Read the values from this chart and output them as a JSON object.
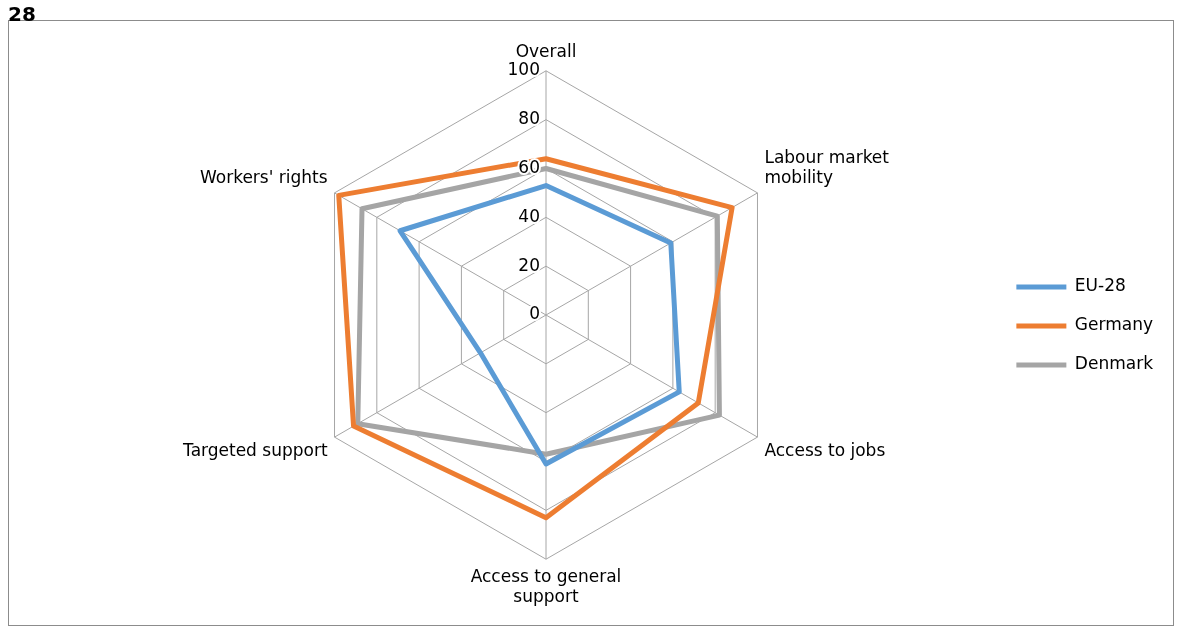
{
  "chart_data": {
    "type": "radar",
    "title": "28",
    "categories": [
      "Overall",
      "Labour market mobility",
      "Access to jobs",
      "Access to general support",
      "Targeted support",
      "Workers' rights"
    ],
    "series": [
      {
        "name": "EU-28",
        "color": "#5b9bd5",
        "values": [
          53,
          59,
          63,
          61,
          31,
          69
        ]
      },
      {
        "name": "Germany",
        "color": "#ed7d31",
        "values": [
          64,
          88,
          72,
          83,
          91,
          98
        ]
      },
      {
        "name": "Denmark",
        "color": "#a5a5a5",
        "values": [
          60,
          81,
          82,
          57,
          89,
          87
        ]
      }
    ],
    "ylim": [
      0,
      100
    ],
    "yticks": [
      0,
      20,
      40,
      60,
      80,
      100
    ],
    "grid": true,
    "legend": "right",
    "marker": "none"
  }
}
